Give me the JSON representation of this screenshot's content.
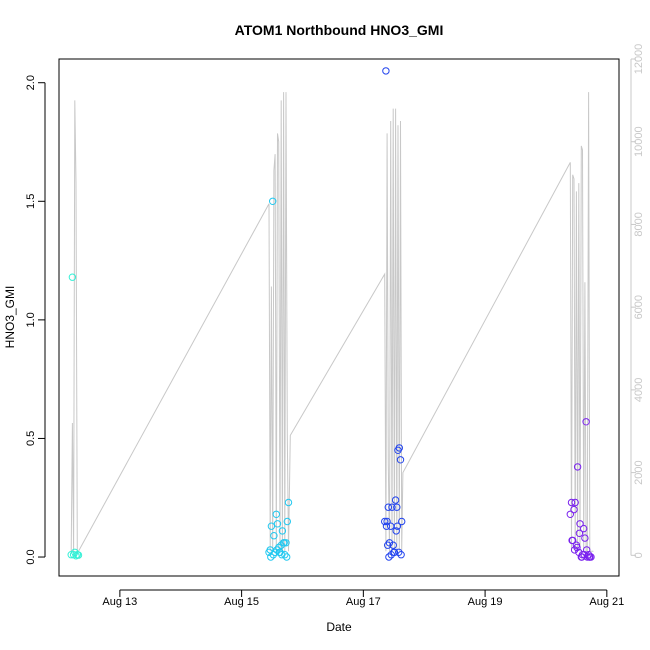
{
  "chart_data": {
    "type": "scatter",
    "title": "ATOM1 Northbound HNO3_GMI",
    "xlabel": "Date",
    "ylabel": "HNO3_GMI",
    "x_tick_labels": [
      "Aug 13",
      "Aug 15",
      "Aug 17",
      "Aug 19",
      "Aug 21"
    ],
    "x_tick_values": [
      13,
      15,
      17,
      19,
      21
    ],
    "y_tick_labels": [
      "0.0",
      "0.5",
      "1.0",
      "1.5",
      "2.0"
    ],
    "y_tick_values": [
      0,
      0.5,
      1.0,
      1.5,
      2.0
    ],
    "y2_tick_labels": [
      "0",
      "2000",
      "4000",
      "6000",
      "8000",
      "10000",
      "12000"
    ],
    "y2_tick_values": [
      0,
      2000,
      4000,
      6000,
      8000,
      10000,
      12000
    ],
    "xlim": [
      12.0,
      21.2
    ],
    "ylim": [
      -0.08,
      2.1
    ],
    "y2lim": [
      -500,
      12000
    ],
    "line_color": "#c8c8c8",
    "altitude_line": {
      "name": "",
      "x": [
        12.2,
        12.22,
        12.24,
        12.26,
        12.28,
        12.3,
        12.32,
        15.45,
        15.47,
        15.49,
        15.51,
        15.53,
        15.55,
        15.57,
        15.59,
        15.61,
        15.63,
        15.65,
        15.67,
        15.69,
        15.71,
        15.73,
        15.75,
        15.77,
        15.8,
        17.35,
        17.37,
        17.39,
        17.41,
        17.43,
        17.45,
        17.47,
        17.49,
        17.51,
        17.53,
        17.55,
        17.57,
        17.59,
        17.61,
        17.63,
        17.65,
        20.4,
        20.42,
        20.44,
        20.46,
        20.48,
        20.5,
        20.52,
        20.54,
        20.56,
        20.58,
        20.6,
        20.62,
        20.64,
        20.66,
        20.68,
        20.7,
        20.72,
        20.74,
        20.76,
        20.78
      ],
      "y": [
        100,
        3200,
        100,
        11000,
        9000,
        100,
        100,
        8500,
        100,
        6500,
        100,
        9300,
        9700,
        100,
        10200,
        10000,
        100,
        11000,
        100,
        11200,
        100,
        11200,
        2900,
        100,
        2900,
        6800,
        100,
        10200,
        2200,
        100,
        10500,
        100,
        10800,
        100,
        10800,
        100,
        10400,
        100,
        10500,
        100,
        2000,
        9500,
        100,
        9200,
        9100,
        100,
        8800,
        100,
        9000,
        100,
        9900,
        9800,
        100,
        6600,
        100,
        100,
        11200,
        100,
        100,
        100,
        100
      ]
    },
    "series": [
      {
        "color": "#33f0d6",
        "x": [
          12.2,
          12.22,
          12.24,
          12.26,
          12.28,
          12.3,
          12.32
        ],
        "y": [
          0.01,
          1.18,
          0.01,
          0.02,
          0.005,
          0.01,
          0.008
        ]
      },
      {
        "color": "#22c8f0",
        "x": [
          15.45,
          15.47,
          15.49,
          15.51,
          15.53,
          15.55,
          15.57,
          15.59,
          15.61,
          15.63,
          15.65,
          15.67,
          15.69,
          15.71,
          15.73,
          15.75,
          15.77,
          15.48,
          15.52,
          15.58,
          15.62,
          15.66,
          15.7,
          15.74
        ],
        "y": [
          0.02,
          0.03,
          0.13,
          1.5,
          0.09,
          0.02,
          0.18,
          0.14,
          0.04,
          0.02,
          0.05,
          0.11,
          0.06,
          0.01,
          0.06,
          0.15,
          0.23,
          0.0,
          0.01,
          0.03,
          0.02,
          0.01,
          0.06,
          0.0
        ]
      },
      {
        "color": "#2244ee",
        "x": [
          17.35,
          17.37,
          17.39,
          17.41,
          17.43,
          17.45,
          17.47,
          17.49,
          17.51,
          17.53,
          17.55,
          17.57,
          17.59,
          17.61,
          17.63,
          17.38,
          17.42,
          17.46,
          17.5,
          17.54,
          17.58,
          17.62,
          17.4,
          17.56
        ],
        "y": [
          0.15,
          2.05,
          0.15,
          0.21,
          0.06,
          0.13,
          0.21,
          0.05,
          0.02,
          0.24,
          0.21,
          0.45,
          0.46,
          0.41,
          0.15,
          0.13,
          0.0,
          0.01,
          0.02,
          0.11,
          0.02,
          0.01,
          0.05,
          0.13
        ]
      },
      {
        "color": "#7a22ee",
        "x": [
          20.4,
          20.42,
          20.44,
          20.46,
          20.48,
          20.5,
          20.52,
          20.54,
          20.56,
          20.58,
          20.6,
          20.62,
          20.64,
          20.66,
          20.68,
          20.7,
          20.72,
          20.74,
          20.43,
          20.47,
          20.51,
          20.55,
          20.59,
          20.63,
          20.67,
          20.71
        ],
        "y": [
          0.18,
          0.23,
          0.07,
          0.2,
          0.23,
          0.05,
          0.38,
          0.02,
          0.14,
          0.0,
          0.01,
          0.12,
          0.08,
          0.57,
          0.0,
          0.01,
          0.0,
          0.0,
          0.07,
          0.03,
          0.04,
          0.1,
          0.0,
          0.01,
          0.03,
          0.0
        ]
      }
    ]
  }
}
